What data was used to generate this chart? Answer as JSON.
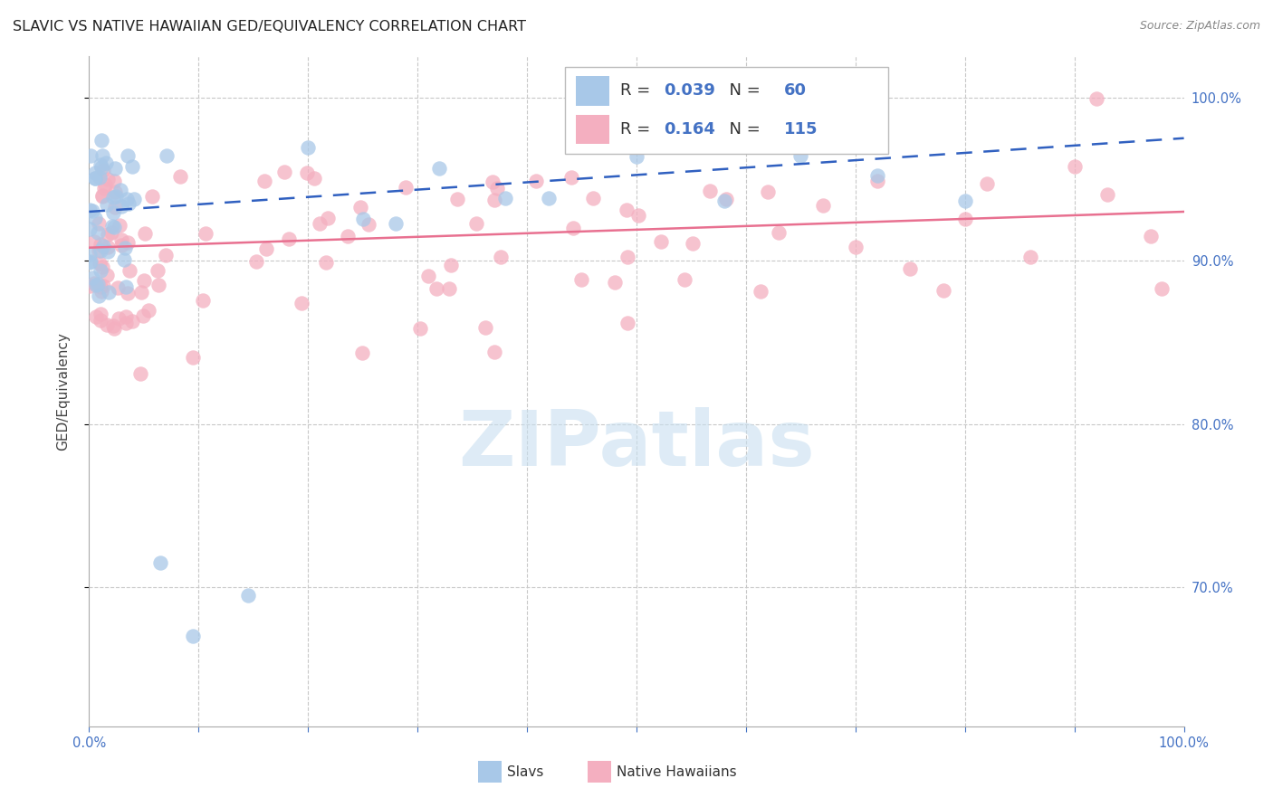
{
  "title": "SLAVIC VS NATIVE HAWAIIAN GED/EQUIVALENCY CORRELATION CHART",
  "source": "Source: ZipAtlas.com",
  "ylabel": "GED/Equivalency",
  "xmin": 0.0,
  "xmax": 1.0,
  "ymin": 0.615,
  "ymax": 1.025,
  "legend1_R": "0.039",
  "legend1_N": "60",
  "legend2_R": "0.164",
  "legend2_N": "115",
  "slavs_color": "#a8c8e8",
  "hawaiians_color": "#f4afc0",
  "slavs_line_color": "#3060c0",
  "hawaiians_line_color": "#e87090",
  "slavs_line_start": 0.93,
  "slavs_line_end": 0.975,
  "hawaiians_line_start": 0.908,
  "hawaiians_line_end": 0.93,
  "watermark_text": "ZIPatlas",
  "watermark_color": "#c8dff0",
  "ytick_positions": [
    0.7,
    0.8,
    0.9,
    1.0
  ],
  "ytick_labels": [
    "70.0%",
    "80.0%",
    "90.0%",
    "100.0%"
  ]
}
